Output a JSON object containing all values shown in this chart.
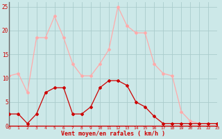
{
  "x": [
    0,
    1,
    2,
    3,
    4,
    5,
    6,
    7,
    8,
    9,
    10,
    11,
    12,
    13,
    14,
    15,
    16,
    17,
    18,
    19,
    20,
    21,
    22,
    23
  ],
  "wind_avg": [
    2.5,
    2.5,
    0.5,
    2.5,
    7.0,
    8.0,
    8.0,
    2.5,
    2.5,
    4.0,
    8.0,
    9.5,
    9.5,
    8.5,
    5.0,
    4.0,
    2.0,
    0.5,
    0.5,
    0.5,
    0.5,
    0.5,
    0.5,
    0.5
  ],
  "wind_gust": [
    10.5,
    11.0,
    7.0,
    18.5,
    18.5,
    23.0,
    18.5,
    13.0,
    10.5,
    10.5,
    13.0,
    16.0,
    25.0,
    21.0,
    19.5,
    19.5,
    13.0,
    11.0,
    10.5,
    3.0,
    1.0,
    0.5,
    0.5,
    0.5
  ],
  "avg_color": "#cc0000",
  "gust_color": "#ffaaaa",
  "bg_color": "#cce8e8",
  "grid_color": "#aacccc",
  "xlabel": "Vent moyen/en rafales ( km/h )",
  "ylim": [
    0,
    26
  ],
  "xlim": [
    0,
    23
  ],
  "yticks": [
    0,
    5,
    10,
    15,
    20,
    25
  ],
  "xticks": [
    0,
    1,
    2,
    3,
    4,
    5,
    6,
    7,
    8,
    9,
    10,
    11,
    12,
    13,
    14,
    15,
    16,
    17,
    18,
    19,
    20,
    21,
    22,
    23
  ]
}
